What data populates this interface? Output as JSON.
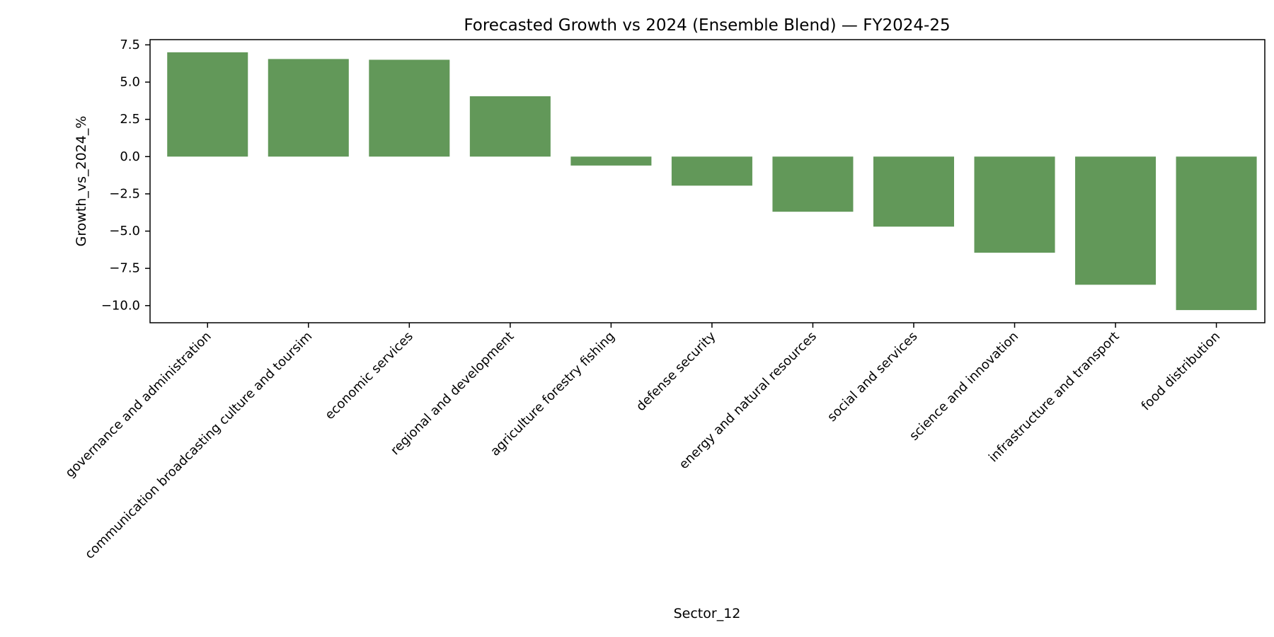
{
  "chart_data": {
    "type": "bar",
    "title": "Forecasted Growth vs 2024 (Ensemble Blend) — FY2024-25",
    "xlabel": "Sector_12",
    "ylabel": "Growth_vs_2024_%",
    "ylim": [
      -11.15,
      7.85
    ],
    "yticks": [
      7.5,
      5.0,
      2.5,
      0.0,
      -2.5,
      -5.0,
      -7.5,
      -10.0
    ],
    "ytick_labels": [
      "7.5",
      "5.0",
      "2.5",
      "0.0",
      "−2.5",
      "−5.0",
      "−7.5",
      "−10.0"
    ],
    "grid": false,
    "legend": "none",
    "bar_color": "#629859",
    "categories": [
      "governance and administration",
      "communication broadcasting culture and toursim",
      "economic services",
      "regional and development",
      "agriculture forestry fishing",
      "defense security",
      "energy and natural resources",
      "social and services",
      "science and innovation",
      "infrastructure and transport",
      "food distribution"
    ],
    "values": [
      7.0,
      6.55,
      6.5,
      4.05,
      -0.6,
      -1.95,
      -3.7,
      -4.7,
      -6.45,
      -8.6,
      -10.3
    ]
  }
}
